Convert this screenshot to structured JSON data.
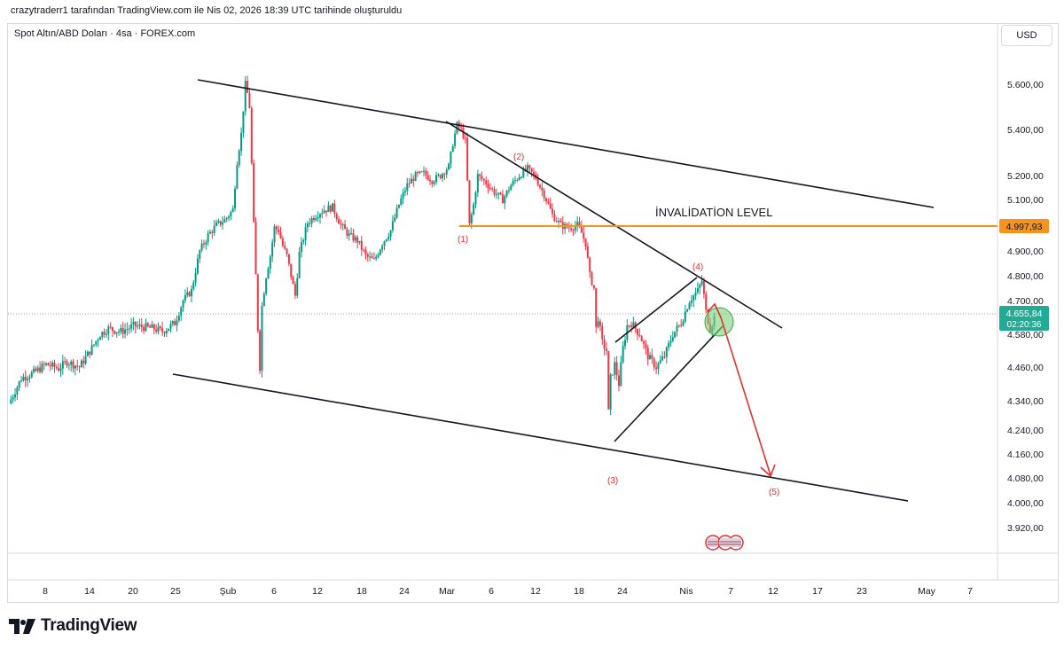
{
  "caption": "crazytraderr1 tarafından TradingView.com ile Nis 02, 2026 18:39 UTC tarihinde oluşturuldu",
  "symbol_line": "Spot Altın/ABD Doları · 4sa · FOREX.com",
  "currency": "USD",
  "brand": "TradingView",
  "colors": {
    "up": "#089981",
    "down": "#f23645",
    "orange": "#f7931a",
    "green": "#22ab94",
    "red": "#e0312f",
    "line": "#131722"
  },
  "chart_data": {
    "type": "candlestick",
    "y_ticks": [
      "5.600,00",
      "5.400,00",
      "5.200,00",
      "5.100,00",
      "4.900,00",
      "4.800,00",
      "4.700,00",
      "4.580,00",
      "4.460,00",
      "4.340,00",
      "4.240,00",
      "4.160,00",
      "4.080,00",
      "4.000,00",
      "3.920,00"
    ],
    "x_ticks": [
      "8",
      "14",
      "20",
      "25",
      "Şub",
      "6",
      "12",
      "18",
      "24",
      "Mar",
      "6",
      "12",
      "18",
      "24",
      "Nis",
      "7",
      "12",
      "17",
      "23",
      "May",
      "7"
    ],
    "price_label": {
      "value": "4.997,93",
      "caption": "İNVALİDATİON LEVEL"
    },
    "current_price": {
      "value": "4.655,84",
      "countdown": "02:20:36"
    },
    "wave_labels": [
      "(1)",
      "(2)",
      "(3)",
      "(4)",
      "(5)"
    ],
    "path": [
      [
        0,
        4330
      ],
      [
        3,
        4420
      ],
      [
        6,
        4440
      ],
      [
        9,
        4470
      ],
      [
        12,
        4455
      ],
      [
        14,
        4480
      ],
      [
        17,
        4460
      ],
      [
        20,
        4530
      ],
      [
        22,
        4580
      ],
      [
        24,
        4600
      ],
      [
        27,
        4590
      ],
      [
        30,
        4610
      ],
      [
        33,
        4605
      ],
      [
        35,
        4600
      ],
      [
        37,
        4590
      ],
      [
        40,
        4620
      ],
      [
        42,
        4700
      ],
      [
        44,
        4740
      ],
      [
        46,
        4900
      ],
      [
        48,
        4960
      ],
      [
        50,
        5000
      ],
      [
        52,
        5020
      ],
      [
        54,
        5060
      ],
      [
        55,
        5260
      ],
      [
        56,
        5380
      ],
      [
        57,
        5600
      ],
      [
        57.5,
        5560
      ],
      [
        58,
        5500
      ],
      [
        59,
        5000
      ],
      [
        60,
        4600
      ],
      [
        60.5,
        4460
      ],
      [
        61,
        4680
      ],
      [
        62,
        4800
      ],
      [
        63,
        4880
      ],
      [
        64,
        4990
      ],
      [
        65,
        4980
      ],
      [
        66,
        4920
      ],
      [
        67,
        4880
      ],
      [
        68,
        4800
      ],
      [
        69,
        4720
      ],
      [
        70,
        4890
      ],
      [
        72,
        5010
      ],
      [
        74,
        5040
      ],
      [
        76,
        5060
      ],
      [
        78,
        5070
      ],
      [
        80,
        5000
      ],
      [
        82,
        4960
      ],
      [
        84,
        4940
      ],
      [
        86,
        4880
      ],
      [
        88,
        4860
      ],
      [
        90,
        4930
      ],
      [
        92,
        4980
      ],
      [
        94,
        5080
      ],
      [
        96,
        5160
      ],
      [
        98,
        5200
      ],
      [
        100,
        5210
      ],
      [
        102,
        5180
      ],
      [
        104,
        5200
      ],
      [
        106,
        5240
      ],
      [
        107,
        5340
      ],
      [
        108,
        5420
      ],
      [
        109,
        5400
      ],
      [
        110,
        5350
      ],
      [
        111,
        5000
      ],
      [
        112,
        5080
      ],
      [
        113,
        5200
      ],
      [
        115,
        5170
      ],
      [
        117,
        5130
      ],
      [
        119,
        5100
      ],
      [
        121,
        5160
      ],
      [
        123,
        5200
      ],
      [
        125,
        5230
      ],
      [
        127,
        5190
      ],
      [
        129,
        5120
      ],
      [
        131,
        5040
      ],
      [
        133,
        5000
      ],
      [
        135,
        4990
      ],
      [
        137,
        5000
      ],
      [
        138,
        4970
      ],
      [
        139,
        4930
      ],
      [
        140,
        4800
      ],
      [
        141,
        4750
      ],
      [
        141.5,
        4600
      ],
      [
        142,
        4640
      ],
      [
        143,
        4550
      ],
      [
        144,
        4520
      ],
      [
        144.5,
        4300
      ],
      [
        145,
        4420
      ],
      [
        146,
        4470
      ],
      [
        147,
        4400
      ],
      [
        148,
        4530
      ],
      [
        149,
        4610
      ],
      [
        150,
        4620
      ],
      [
        152,
        4580
      ],
      [
        154,
        4500
      ],
      [
        156,
        4460
      ],
      [
        158,
        4500
      ],
      [
        160,
        4580
      ],
      [
        162,
        4620
      ],
      [
        164,
        4700
      ],
      [
        166,
        4740
      ],
      [
        167,
        4780
      ],
      [
        167.5,
        4720
      ],
      [
        168,
        4660
      ],
      [
        169,
        4600
      ],
      [
        170,
        4640
      ]
    ]
  }
}
